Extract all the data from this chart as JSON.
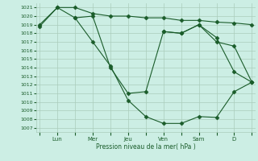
{
  "bg_color": "#cceee4",
  "line_color": "#1a5c2a",
  "grid_color": "#aaccbb",
  "xlabel": "Pression niveau de la mer( hPa )",
  "ylim": [
    1006.5,
    1021.5
  ],
  "ytick_vals": [
    1007,
    1008,
    1009,
    1010,
    1011,
    1012,
    1013,
    1014,
    1015,
    1016,
    1017,
    1018,
    1019,
    1020,
    1021
  ],
  "x_day_positions": [
    1.0,
    3.0,
    5.0,
    7.0,
    9.0,
    11.0
  ],
  "x_day_labels": [
    "Lun",
    "Mer",
    "Jeu",
    "Ven",
    "Sam",
    "D"
  ],
  "xlim": [
    -0.2,
    12.2
  ],
  "line1_x": [
    0,
    1,
    2,
    3,
    4,
    5,
    6,
    7,
    8,
    9,
    10,
    11,
    12
  ],
  "line1_y": [
    1019.0,
    1021.0,
    1021.0,
    1020.3,
    1020.0,
    1020.0,
    1019.8,
    1019.8,
    1019.5,
    1019.5,
    1019.3,
    1019.2,
    1019.0
  ],
  "line2_x": [
    0,
    1,
    2,
    3,
    4,
    5,
    6,
    7,
    8,
    9,
    10,
    11,
    12
  ],
  "line2_y": [
    1018.8,
    1021.0,
    1019.8,
    1017.0,
    1014.2,
    1010.2,
    1008.3,
    1007.5,
    1007.5,
    1008.3,
    1008.2,
    1011.2,
    1012.3
  ],
  "line3_x": [
    2,
    3,
    4,
    5,
    6,
    7,
    8,
    9,
    10,
    11,
    12
  ],
  "line3_y": [
    1019.8,
    1020.0,
    1014.0,
    1011.0,
    1011.2,
    1018.2,
    1018.0,
    1019.0,
    1017.0,
    1016.5,
    1012.3
  ],
  "line4_x": [
    7,
    8,
    9,
    10,
    11,
    12
  ],
  "line4_y": [
    1018.2,
    1018.0,
    1019.0,
    1017.5,
    1013.5,
    1012.3
  ]
}
